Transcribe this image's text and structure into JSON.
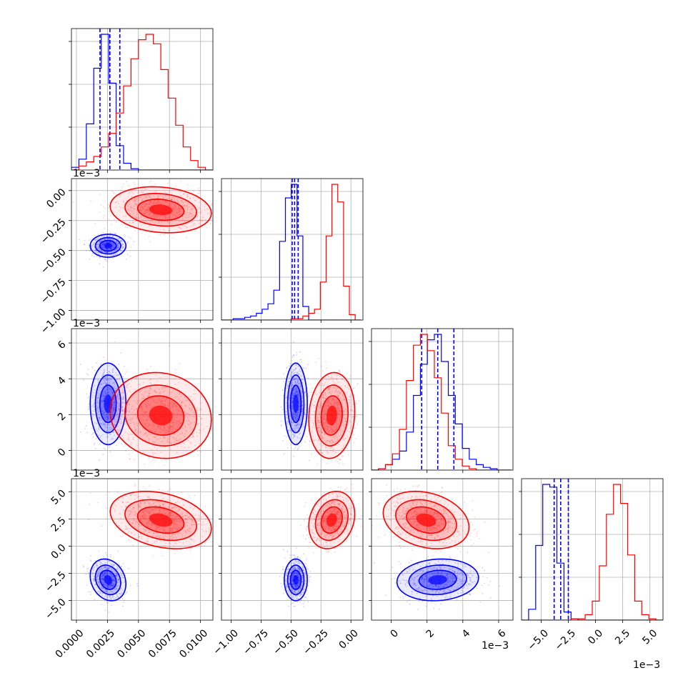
{
  "chart_data": {
    "type": "corner",
    "parameters": [
      {
        "range": [
          -0.0004,
          0.011
        ],
        "ticks": [
          0.0,
          0.0025,
          0.005,
          0.0075,
          0.01
        ],
        "tick_labels": [
          "0.0000",
          "0.0025",
          "0.0050",
          "0.0075",
          "0.0100"
        ],
        "offset": ""
      },
      {
        "range": [
          -0.00108,
          0.0001
        ],
        "ticks": [
          -0.001,
          -0.00075,
          -0.0005,
          -0.00025,
          0.0
        ],
        "tick_labels": [
          "−1.00",
          "−0.75",
          "−0.50",
          "−0.25",
          "0.00"
        ],
        "offset": "1e−3"
      },
      {
        "range": [
          -0.0011,
          0.0068
        ],
        "ticks": [
          0.0,
          0.002,
          0.004,
          0.006
        ],
        "tick_labels": [
          "0",
          "2",
          "4",
          "6"
        ],
        "offset": "1e−3"
      },
      {
        "range": [
          -0.0068,
          0.0062
        ],
        "ticks": [
          -0.005,
          -0.0025,
          0.0,
          0.0025,
          0.005
        ],
        "tick_labels": [
          "−5.0",
          "−2.5",
          "0.0",
          "2.5",
          "5.0"
        ],
        "offset": "1e−3"
      }
    ],
    "series": [
      {
        "color": "#0000ff",
        "mean": [
          0.00255,
          -0.00046,
          0.0026,
          -0.0031
        ],
        "std": [
          0.0006,
          4e-05,
          0.00095,
          0.0008
        ],
        "quantiles": [
          [
            0.0019,
            0.0027,
            0.0035
          ],
          [
            -0.00049,
            -0.00047,
            -0.00044
          ],
          [
            0.0017,
            0.0026,
            0.0035
          ],
          [
            -0.0038,
            -0.0032,
            -0.0025
          ]
        ],
        "hist": [
          {
            "edges_start": -0.0004,
            "bin": 0.0006,
            "counts": [
              2,
              8,
              34,
              75,
              100,
              64,
              18,
              5,
              1,
              0,
              0,
              0,
              0,
              0,
              0,
              0,
              0,
              0,
              0,
              0
            ]
          },
          {
            "edges_start": -0.00108,
            "bin": 4.85e-05,
            "counts": [
              0,
              0,
              1,
              1,
              2,
              3,
              5,
              8,
              12,
              22,
              58,
              90,
              100,
              62,
              10,
              0,
              0,
              0,
              0,
              0,
              0,
              0,
              0,
              0
            ]
          },
          {
            "edges_start": -0.0011,
            "bin": 0.00039,
            "counts": [
              0,
              1,
              4,
              8,
              14,
              28,
              55,
              78,
              96,
              100,
              80,
              55,
              34,
              16,
              8,
              4,
              2,
              1,
              0,
              0
            ]
          },
          {
            "edges_start": -0.0068,
            "bin": 0.00065,
            "counts": [
              0,
              8,
              55,
              100,
              98,
              42,
              6,
              1,
              0,
              0,
              0,
              0,
              0,
              0,
              0,
              0,
              0,
              0,
              0,
              0
            ]
          }
        ]
      },
      {
        "color": "#ff0000",
        "mean": [
          0.0068,
          -0.00016,
          0.00195,
          0.0024
        ],
        "std": [
          0.0017,
          8e-05,
          0.001,
          0.0011
        ],
        "quantiles": [],
        "hist": [
          {
            "edges_start": -0.0004,
            "bin": 0.0006,
            "counts": [
              0,
              3,
              6,
              10,
              17,
              27,
              42,
              62,
              82,
              96,
              100,
              93,
              74,
              53,
              33,
              17,
              7,
              2,
              0,
              0
            ]
          },
          {
            "edges_start": -0.00108,
            "bin": 4.85e-05,
            "counts": [
              0,
              0,
              0,
              0,
              0,
              0,
              0,
              0,
              0,
              0,
              0,
              0,
              1,
              1,
              3,
              5,
              8,
              28,
              62,
              100,
              87,
              25,
              4,
              0
            ]
          },
          {
            "edges_start": -0.0011,
            "bin": 0.00039,
            "counts": [
              0,
              1,
              4,
              12,
              30,
              66,
              92,
              100,
              88,
              68,
              42,
              18,
              8,
              3,
              1,
              0,
              0,
              0,
              0,
              0
            ]
          },
          {
            "edges_start": -0.0068,
            "bin": 0.00065,
            "counts": [
              0,
              0,
              0,
              0,
              0,
              0,
              0,
              1,
              1,
              4,
              14,
              40,
              78,
              100,
              86,
              48,
              14,
              4,
              1,
              0
            ]
          }
        ]
      }
    ],
    "grid": true
  }
}
